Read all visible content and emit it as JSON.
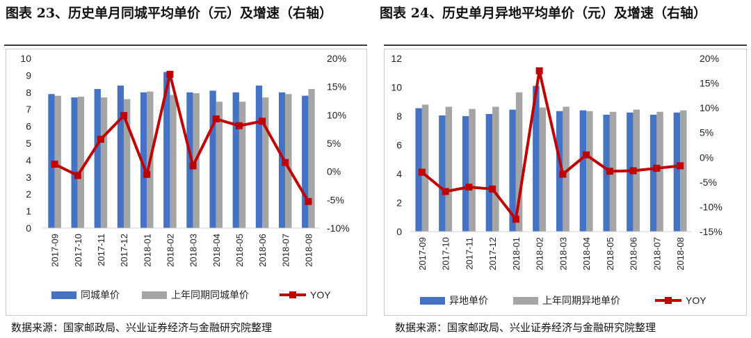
{
  "left_panel": {
    "title": "图表 23、历史单月同城平均单价（元）及增速（右轴）",
    "source": "数据来源：国家邮政局、兴业证券经济与金融研究院整理"
  },
  "right_panel": {
    "title": "图表 24、历史单月异地平均单价（元）及增速（右轴）",
    "source": "数据来源：国家邮政局、兴业证券经济与金融研究院整理"
  },
  "chart_data": [
    {
      "type": "bar",
      "categories": [
        "2017-09",
        "2017-10",
        "2017-11",
        "2017-12",
        "2018-01",
        "2018-02",
        "2018-03",
        "2018-04",
        "2018-05",
        "2018-06",
        "2018-07",
        "2018-08"
      ],
      "series": [
        {
          "name": "同城单价",
          "kind": "bar",
          "color": "#4472C4",
          "values": [
            7.9,
            7.7,
            8.2,
            8.4,
            8.0,
            9.2,
            8.0,
            8.1,
            8.0,
            8.4,
            8.0,
            7.8
          ]
        },
        {
          "name": "上年同期同城单价",
          "kind": "bar",
          "color": "#A5A5A5",
          "values": [
            7.8,
            7.75,
            7.7,
            7.6,
            8.05,
            7.85,
            7.95,
            7.45,
            7.45,
            7.7,
            7.9,
            8.2
          ]
        },
        {
          "name": "YOY",
          "kind": "line",
          "axis": "right",
          "color": "#C00000",
          "values": [
            1.3,
            -0.7,
            5.7,
            9.9,
            -0.5,
            17.2,
            1.0,
            9.3,
            8.1,
            8.9,
            1.6,
            -5.3
          ]
        }
      ],
      "left_axis": {
        "ylim": [
          0,
          10
        ],
        "ticks": [
          "0",
          "1",
          "2",
          "3",
          "4",
          "5",
          "6",
          "7",
          "8",
          "9",
          "10"
        ]
      },
      "right_axis": {
        "ylim": [
          -10,
          20
        ],
        "ticks": [
          "-10%",
          "-5%",
          "0%",
          "5%",
          "10%",
          "15%",
          "20%"
        ]
      },
      "legend": [
        "同城单价",
        "上年同期同城单价",
        "YOY"
      ],
      "legend_position": "bottom",
      "grid": false
    },
    {
      "type": "bar",
      "categories": [
        "2017-09",
        "2017-10",
        "2017-11",
        "2017-12",
        "2018-01",
        "2018-02",
        "2018-03",
        "2018-04",
        "2018-05",
        "2018-06",
        "2018-07",
        "2018-08"
      ],
      "series": [
        {
          "name": "异地单价",
          "kind": "bar",
          "color": "#4472C4",
          "values": [
            8.55,
            8.05,
            8.0,
            8.15,
            8.45,
            10.1,
            8.35,
            8.4,
            8.1,
            8.25,
            8.1,
            8.25
          ]
        },
        {
          "name": "上年同期异地单价",
          "kind": "bar",
          "color": "#A5A5A5",
          "values": [
            8.8,
            8.65,
            8.5,
            8.65,
            9.65,
            8.6,
            8.65,
            8.35,
            8.3,
            8.45,
            8.3,
            8.4
          ]
        },
        {
          "name": "YOY",
          "kind": "line",
          "axis": "right",
          "color": "#C00000",
          "values": [
            -3.0,
            -6.9,
            -6.0,
            -6.4,
            -12.5,
            17.5,
            -3.4,
            0.5,
            -2.8,
            -2.7,
            -2.2,
            -1.7
          ]
        }
      ],
      "left_axis": {
        "ylim": [
          0,
          12
        ],
        "ticks": [
          "0",
          "2",
          "4",
          "6",
          "8",
          "10",
          "12"
        ]
      },
      "right_axis": {
        "ylim": [
          -15,
          20
        ],
        "ticks": [
          "-15%",
          "-10%",
          "-5%",
          "0%",
          "5%",
          "10%",
          "15%",
          "20%"
        ]
      },
      "legend": [
        "异地单价",
        "上年同期异地单价",
        "YOY"
      ],
      "legend_position": "bottom",
      "grid": false
    }
  ]
}
